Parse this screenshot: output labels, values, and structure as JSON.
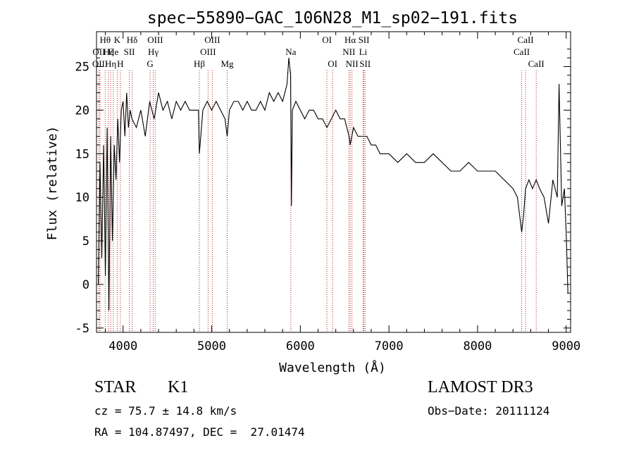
{
  "chart_data": {
    "type": "line",
    "title": "spec−55890−GAC_106N28_M1_sp02−191.fits",
    "xlabel": "Wavelength (Å)",
    "ylabel": "Flux (relative)",
    "xlim": [
      3700,
      9050
    ],
    "ylim": [
      -5.5,
      29
    ],
    "xticks": [
      4000,
      5000,
      6000,
      7000,
      8000,
      9000
    ],
    "yticks": [
      -5,
      0,
      5,
      10,
      15,
      20,
      25
    ],
    "line_color": "#000000",
    "marker_color": "#b22222",
    "spectrum": {
      "name": "flux",
      "x": [
        3720,
        3740,
        3760,
        3780,
        3800,
        3820,
        3840,
        3860,
        3880,
        3900,
        3920,
        3940,
        3960,
        3980,
        4000,
        4020,
        4040,
        4060,
        4080,
        4100,
        4150,
        4200,
        4250,
        4300,
        4350,
        4400,
        4450,
        4500,
        4550,
        4600,
        4650,
        4700,
        4750,
        4800,
        4850,
        4861,
        4900,
        4950,
        5000,
        5050,
        5100,
        5150,
        5175,
        5200,
        5250,
        5300,
        5350,
        5400,
        5450,
        5500,
        5550,
        5600,
        5650,
        5700,
        5750,
        5800,
        5850,
        5870,
        5890,
        5900,
        5910,
        5950,
        6000,
        6050,
        6100,
        6150,
        6200,
        6250,
        6300,
        6350,
        6400,
        6450,
        6500,
        6550,
        6563,
        6600,
        6650,
        6700,
        6750,
        6800,
        6850,
        6900,
        6950,
        7000,
        7100,
        7200,
        7300,
        7400,
        7500,
        7600,
        7700,
        7800,
        7900,
        8000,
        8100,
        8200,
        8300,
        8400,
        8450,
        8498,
        8520,
        8542,
        8580,
        8620,
        8662,
        8700,
        8750,
        8800,
        8850,
        8900,
        8920,
        8950,
        8980,
        9000,
        9020
      ],
      "y": [
        0,
        14,
        3,
        16,
        1,
        18,
        -3,
        17,
        5,
        16,
        12,
        19,
        14,
        20,
        21,
        17,
        22,
        18,
        20,
        19,
        18,
        20,
        17,
        21,
        19,
        22,
        20,
        21,
        19,
        21,
        20,
        21,
        20,
        20,
        20,
        15,
        20,
        21,
        20,
        21,
        20,
        19,
        17,
        20,
        21,
        21,
        20,
        21,
        20,
        20,
        21,
        20,
        22,
        21,
        22,
        21,
        23,
        26,
        24,
        9,
        20,
        21,
        20,
        19,
        20,
        20,
        19,
        19,
        18,
        19,
        20,
        19,
        19,
        17,
        16,
        18,
        17,
        17,
        17,
        16,
        16,
        15,
        15,
        15,
        14,
        15,
        14,
        14,
        15,
        14,
        13,
        13,
        14,
        13,
        13,
        13,
        12,
        11,
        10,
        6,
        8,
        11,
        12,
        11,
        12,
        11,
        10,
        7,
        12,
        10,
        23,
        9,
        11,
        6,
        -1
      ]
    },
    "line_markers": [
      {
        "label": "Hθ",
        "wave": 3798,
        "row": 0
      },
      {
        "label": "OII",
        "wave": 3727,
        "row": 1
      },
      {
        "label": "OIII",
        "wave": 3740,
        "row": 2
      },
      {
        "label": "Hζ",
        "wave": 3835,
        "row": 1
      },
      {
        "label": "He",
        "wave": 3889,
        "row": 1
      },
      {
        "label": "Hη",
        "wave": 3860,
        "row": 2
      },
      {
        "label": "K",
        "wave": 3934,
        "row": 0
      },
      {
        "label": "H",
        "wave": 3969,
        "row": 2
      },
      {
        "label": "Hδ",
        "wave": 4102,
        "row": 0
      },
      {
        "label": "SII",
        "wave": 4070,
        "row": 1
      },
      {
        "label": "OIII",
        "wave": 4363,
        "row": 0
      },
      {
        "label": "Hγ",
        "wave": 4340,
        "row": 1
      },
      {
        "label": "G",
        "wave": 4305,
        "row": 2
      },
      {
        "label": "Hβ",
        "wave": 4861,
        "row": 2
      },
      {
        "label": "OIII",
        "wave": 4959,
        "row": 1
      },
      {
        "label": "OIII",
        "wave": 5007,
        "row": 0
      },
      {
        "label": "Mg",
        "wave": 5175,
        "row": 2
      },
      {
        "label": "Na",
        "wave": 5893,
        "row": 1
      },
      {
        "label": "OI",
        "wave": 6300,
        "row": 0
      },
      {
        "label": "OI",
        "wave": 6364,
        "row": 2
      },
      {
        "label": "Hα",
        "wave": 6563,
        "row": 0
      },
      {
        "label": "NII",
        "wave": 6548,
        "row": 1
      },
      {
        "label": "NII",
        "wave": 6583,
        "row": 2
      },
      {
        "label": "SII",
        "wave": 6717,
        "row": 0
      },
      {
        "label": "Li",
        "wave": 6708,
        "row": 1
      },
      {
        "label": "SII",
        "wave": 6731,
        "row": 2
      },
      {
        "label": "CaII",
        "wave": 8542,
        "row": 0
      },
      {
        "label": "CaII",
        "wave": 8498,
        "row": 1
      },
      {
        "label": "CaII",
        "wave": 8662,
        "row": 2
      }
    ]
  },
  "info": {
    "object_class": "STAR",
    "subclass": "K1",
    "cz": "cz = 75.7 ± 14.8 km/s",
    "coords": "RA = 104.87497, DEC =  27.01474",
    "survey": "LAMOST DR3",
    "obs_date": "Obs−Date: 20111124"
  }
}
